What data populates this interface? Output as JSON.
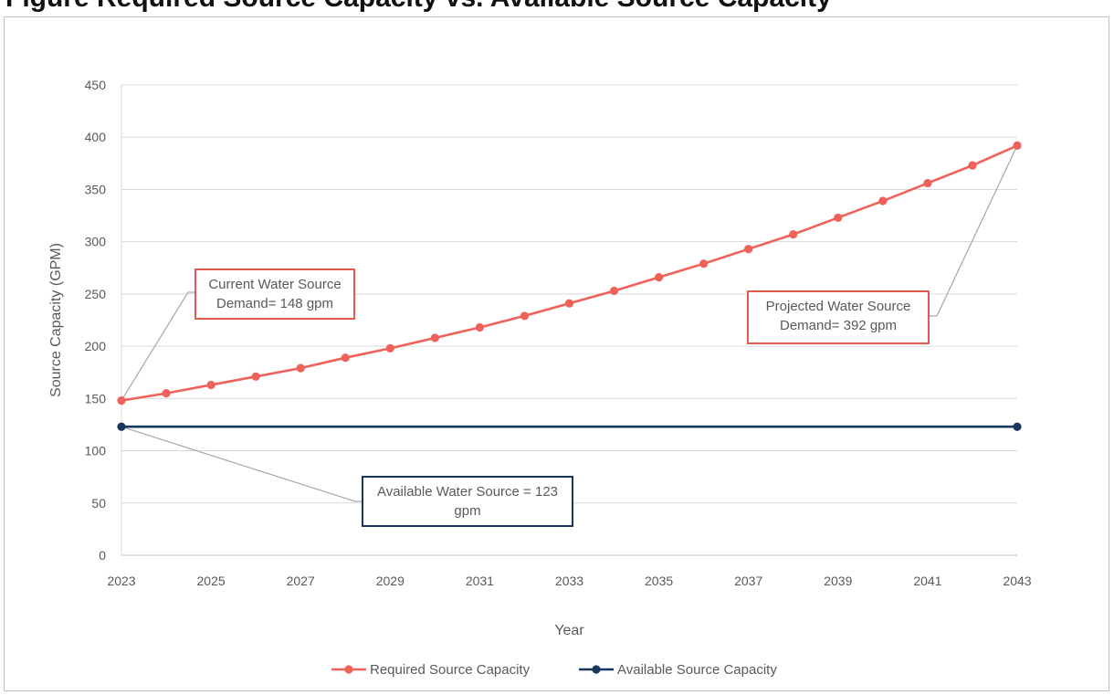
{
  "title": "Figure Required Source Capacity vs. Available Source Capacity",
  "chart_data": {
    "type": "line",
    "title": "Figure Required Source Capacity vs. Available Source Capacity",
    "xlabel": "Year",
    "ylabel": "Source Capacity (GPM)",
    "x": [
      2023,
      2024,
      2025,
      2026,
      2027,
      2028,
      2029,
      2030,
      2031,
      2032,
      2033,
      2034,
      2035,
      2036,
      2037,
      2038,
      2039,
      2040,
      2041,
      2042,
      2043
    ],
    "x_ticks": [
      2023,
      2025,
      2027,
      2029,
      2031,
      2033,
      2035,
      2037,
      2039,
      2041,
      2043
    ],
    "y_ticks": [
      0,
      50,
      100,
      150,
      200,
      250,
      300,
      350,
      400,
      450
    ],
    "xlim": [
      2023,
      2043
    ],
    "ylim": [
      0,
      450
    ],
    "grid": true,
    "legend_position": "bottom-center",
    "series": [
      {
        "name": "Required Source Capacity",
        "color": "#f0615a",
        "values": [
          148,
          155,
          163,
          171,
          179,
          189,
          198,
          208,
          218,
          229,
          241,
          253,
          266,
          279,
          293,
          307,
          323,
          339,
          356,
          373,
          392
        ]
      },
      {
        "name": "Available Source Capacity",
        "color": "#17375e",
        "endpoints_only": true,
        "values": [
          123,
          123,
          123,
          123,
          123,
          123,
          123,
          123,
          123,
          123,
          123,
          123,
          123,
          123,
          123,
          123,
          123,
          123,
          123,
          123,
          123
        ]
      }
    ],
    "annotations": [
      {
        "lines": [
          "Current Water Source",
          "Demand= 148 gpm"
        ],
        "border": "#e55a4e",
        "target_x": 2023,
        "target_y": 148
      },
      {
        "lines": [
          "Projected Water Source",
          "Demand= 392 gpm"
        ],
        "border": "#e55a4e",
        "target_x": 2043,
        "target_y": 392
      },
      {
        "lines": [
          "Available Water Source = 123",
          "gpm"
        ],
        "border": "#17375e",
        "target_x": 2023,
        "target_y": 123
      }
    ]
  }
}
